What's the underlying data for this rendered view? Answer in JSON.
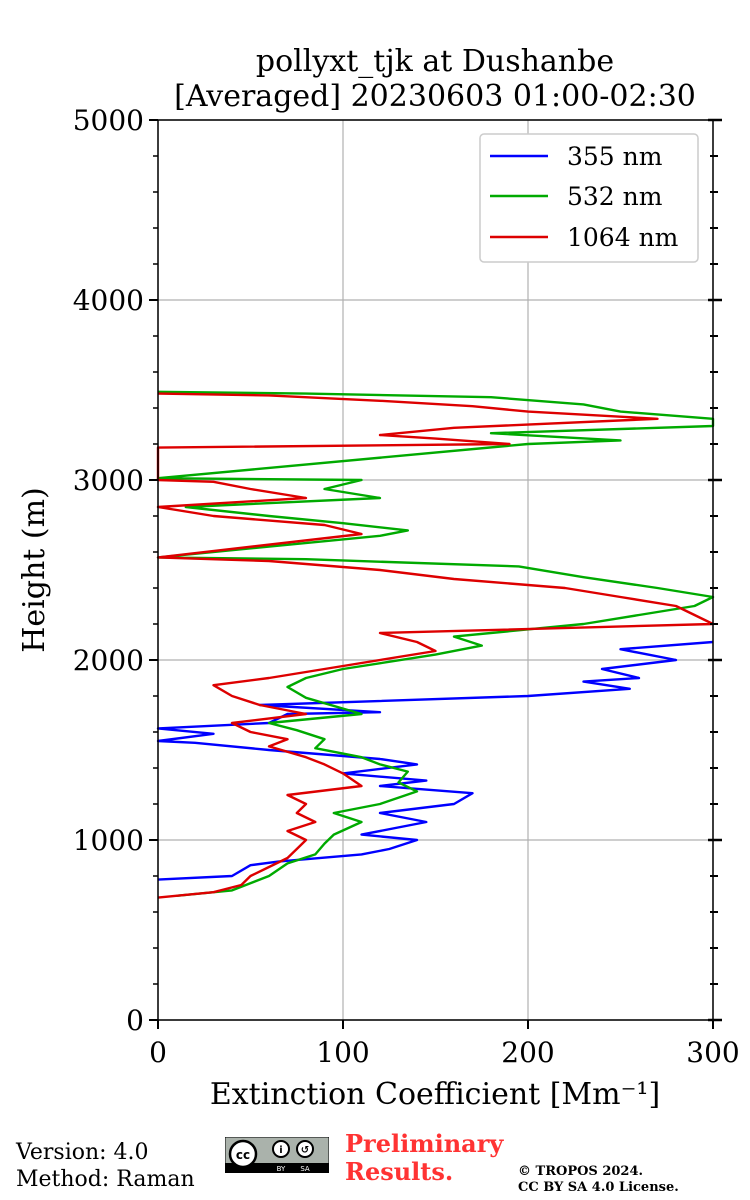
{
  "chart_data": {
    "type": "line",
    "title": "pollyxt_tjk at Dushanbe",
    "subtitle": "[Averaged] 20230603 01:00-02:30",
    "xlabel": "Extinction Coefficient [Mm⁻¹]",
    "ylabel": "Height (m)",
    "xlim": [
      0,
      300
    ],
    "ylim": [
      0,
      5000
    ],
    "x_ticks": [
      0,
      100,
      200,
      300
    ],
    "y_ticks": [
      0,
      1000,
      2000,
      3000,
      4000,
      5000
    ],
    "grid": true,
    "legend_position": "top-right",
    "series": [
      {
        "name": "355 nm",
        "color": "#0000ff",
        "points": [
          [
            0,
            780
          ],
          [
            40,
            800
          ],
          [
            50,
            860
          ],
          [
            65,
            880
          ],
          [
            110,
            920
          ],
          [
            125,
            950
          ],
          [
            140,
            1000
          ],
          [
            110,
            1030
          ],
          [
            145,
            1100
          ],
          [
            120,
            1150
          ],
          [
            160,
            1200
          ],
          [
            170,
            1260
          ],
          [
            120,
            1300
          ],
          [
            145,
            1330
          ],
          [
            100,
            1370
          ],
          [
            140,
            1420
          ],
          [
            120,
            1450
          ],
          [
            60,
            1500
          ],
          [
            20,
            1540
          ],
          [
            0,
            1550
          ],
          [
            30,
            1590
          ],
          [
            0,
            1620
          ],
          [
            60,
            1650
          ],
          [
            70,
            1700
          ],
          [
            120,
            1710
          ],
          [
            55,
            1750
          ],
          [
            200,
            1800
          ],
          [
            255,
            1840
          ],
          [
            230,
            1880
          ],
          [
            260,
            1900
          ],
          [
            240,
            1950
          ],
          [
            280,
            2000
          ],
          [
            250,
            2060
          ],
          [
            300,
            2100
          ]
        ]
      },
      {
        "name": "532 nm",
        "color": "#00aa00",
        "points": [
          [
            10,
            690
          ],
          [
            40,
            720
          ],
          [
            60,
            800
          ],
          [
            70,
            870
          ],
          [
            85,
            920
          ],
          [
            90,
            980
          ],
          [
            95,
            1030
          ],
          [
            110,
            1100
          ],
          [
            95,
            1150
          ],
          [
            120,
            1200
          ],
          [
            140,
            1270
          ],
          [
            130,
            1320
          ],
          [
            135,
            1380
          ],
          [
            120,
            1420
          ],
          [
            110,
            1460
          ],
          [
            85,
            1510
          ],
          [
            90,
            1560
          ],
          [
            75,
            1610
          ],
          [
            60,
            1650
          ],
          [
            110,
            1700
          ],
          [
            80,
            1790
          ],
          [
            70,
            1850
          ],
          [
            80,
            1900
          ],
          [
            100,
            1950
          ],
          [
            150,
            2030
          ],
          [
            175,
            2080
          ],
          [
            160,
            2130
          ],
          [
            230,
            2200
          ],
          [
            260,
            2250
          ],
          [
            290,
            2300
          ],
          [
            300,
            2350
          ],
          [
            270,
            2400
          ],
          [
            230,
            2460
          ],
          [
            195,
            2520
          ],
          [
            80,
            2560
          ],
          [
            0,
            2570
          ],
          [
            120,
            2690
          ],
          [
            135,
            2720
          ],
          [
            100,
            2760
          ],
          [
            60,
            2800
          ],
          [
            15,
            2850
          ],
          [
            120,
            2900
          ],
          [
            90,
            2950
          ],
          [
            110,
            3000
          ],
          [
            0,
            3010
          ],
          [
            200,
            3200
          ],
          [
            250,
            3220
          ],
          [
            180,
            3260
          ],
          [
            300,
            3300
          ],
          [
            300,
            3340
          ],
          [
            250,
            3380
          ],
          [
            230,
            3420
          ],
          [
            180,
            3460
          ],
          [
            80,
            3480
          ],
          [
            0,
            3490
          ]
        ]
      },
      {
        "name": "1064 nm",
        "color": "#dd0000",
        "points": [
          [
            0,
            680
          ],
          [
            30,
            710
          ],
          [
            45,
            750
          ],
          [
            50,
            800
          ],
          [
            60,
            850
          ],
          [
            70,
            900
          ],
          [
            75,
            950
          ],
          [
            80,
            1000
          ],
          [
            70,
            1050
          ],
          [
            85,
            1100
          ],
          [
            75,
            1150
          ],
          [
            80,
            1200
          ],
          [
            70,
            1250
          ],
          [
            110,
            1300
          ],
          [
            100,
            1370
          ],
          [
            90,
            1420
          ],
          [
            80,
            1460
          ],
          [
            60,
            1520
          ],
          [
            70,
            1560
          ],
          [
            50,
            1600
          ],
          [
            40,
            1650
          ],
          [
            80,
            1700
          ],
          [
            55,
            1750
          ],
          [
            40,
            1800
          ],
          [
            30,
            1860
          ],
          [
            60,
            1900
          ],
          [
            90,
            1950
          ],
          [
            150,
            2050
          ],
          [
            140,
            2100
          ],
          [
            120,
            2150
          ],
          [
            300,
            2200
          ],
          [
            290,
            2250
          ],
          [
            280,
            2300
          ],
          [
            250,
            2350
          ],
          [
            220,
            2400
          ],
          [
            160,
            2450
          ],
          [
            120,
            2500
          ],
          [
            60,
            2550
          ],
          [
            0,
            2570
          ],
          [
            110,
            2700
          ],
          [
            90,
            2750
          ],
          [
            30,
            2800
          ],
          [
            0,
            2850
          ],
          [
            80,
            2900
          ],
          [
            50,
            2950
          ],
          [
            30,
            2990
          ],
          [
            0,
            3000
          ],
          [
            0,
            3180
          ],
          [
            190,
            3200
          ],
          [
            150,
            3230
          ],
          [
            120,
            3250
          ],
          [
            160,
            3290
          ],
          [
            270,
            3340
          ],
          [
            200,
            3380
          ],
          [
            170,
            3410
          ],
          [
            120,
            3440
          ],
          [
            60,
            3470
          ],
          [
            0,
            3480
          ]
        ]
      }
    ]
  },
  "legend": {
    "items": [
      {
        "label": "355 nm",
        "color": "#0000ff"
      },
      {
        "label": "532 nm",
        "color": "#00aa00"
      },
      {
        "label": "1064 nm",
        "color": "#dd0000"
      }
    ]
  },
  "footer": {
    "version": "Version: 4.0",
    "method": "Method: Raman",
    "preliminary_line1": "Preliminary",
    "preliminary_line2": "Results.",
    "copyright_line1": "© TROPOS 2024.",
    "copyright_line2": "CC BY SA 4.0 License.",
    "cc_by": "BY",
    "cc_sa": "SA"
  }
}
